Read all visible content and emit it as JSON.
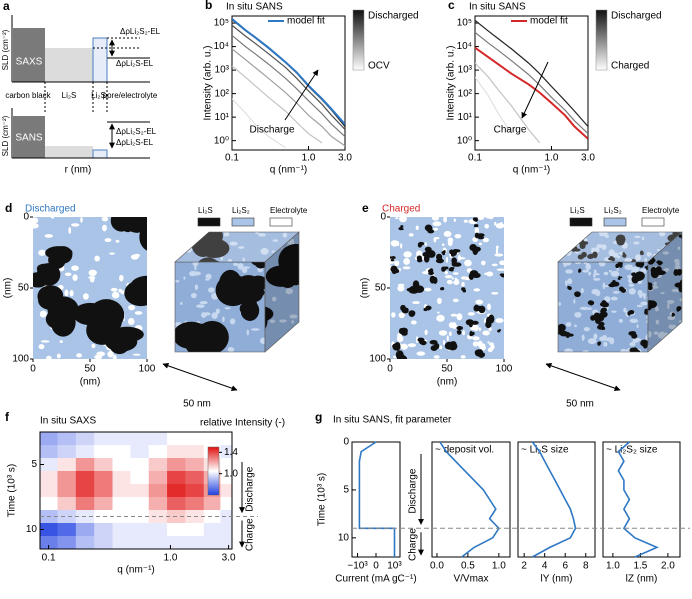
{
  "schematic": {
    "panel": "a",
    "ylabel": "SLD (cm⁻²)",
    "top": "SAXS",
    "bottom": "SANS",
    "materials": [
      "carbon black",
      "Li₂S",
      "Li₂S₂",
      "pore/electrolyte"
    ],
    "contrasts": [
      "ΔρLi₂S₂-EL",
      "ΔρLi₂S-EL"
    ],
    "xlabel": "r (nm)"
  },
  "chart_data": [
    {
      "type": "line",
      "panel": "b",
      "title": "In situ SANS",
      "xlabel": "q (nm⁻¹)",
      "ylabel": "Intensity (arb. u.)",
      "log_x": true,
      "log_y": true,
      "x": [
        0.1,
        0.15,
        0.2,
        0.3,
        0.5,
        0.7,
        1,
        1.5,
        2,
        3
      ],
      "xlim": [
        0.1,
        3
      ],
      "xticks": [
        0.1,
        {
          "value": 1,
          "label": "1.0"
        },
        {
          "value": 3,
          "label": "3.0"
        }
      ],
      "ylim": [
        0.4,
        200000
      ],
      "yticks": [
        {
          "value": 1,
          "label": "10⁰"
        },
        {
          "value": 10,
          "label": "10¹"
        },
        {
          "value": 100,
          "label": "10²"
        },
        {
          "value": 1000,
          "label": "10³"
        },
        {
          "value": 10000,
          "label": "10⁴"
        },
        {
          "value": 100000,
          "label": "10⁵"
        }
      ],
      "series": [
        {
          "color": "#e0e0e0",
          "values": [
            60,
            15,
            5,
            1.5,
            0.5,
            null,
            null,
            null,
            null,
            null
          ]
        },
        {
          "color": "#c4c4c4",
          "values": [
            1500,
            500,
            220,
            70,
            18,
            6,
            2,
            0.8,
            null,
            null
          ]
        },
        {
          "color": "#a0a0a0",
          "values": [
            8000,
            2800,
            1300,
            450,
            110,
            40,
            12,
            4,
            1.5,
            0.6
          ]
        },
        {
          "color": "#7a7a7a",
          "values": [
            30000,
            10000,
            5000,
            1800,
            450,
            160,
            50,
            14,
            5,
            1.5
          ]
        },
        {
          "color": "#505050",
          "values": [
            80000,
            28000,
            14000,
            5000,
            1300,
            450,
            130,
            35,
            12,
            3
          ]
        },
        {
          "color": "#222222",
          "values": [
            140000,
            48000,
            24000,
            8500,
            2100,
            750,
            200,
            55,
            20,
            4
          ]
        },
        {
          "name": "model fit",
          "color": "#2f78c4",
          "values": [
            150000,
            50000,
            25000,
            9000,
            2200,
            800,
            220,
            60,
            22,
            5
          ]
        }
      ],
      "colorbar": {
        "colors": [
          "#111111",
          "#ffffff"
        ],
        "labels": [
          "Discharged",
          "OCV"
        ]
      },
      "annotation": "Discharge"
    },
    {
      "type": "line",
      "panel": "c",
      "title": "In situ SANS",
      "xlabel": "q (nm⁻¹)",
      "ylabel": "Intensity (arb. u.)",
      "log_x": true,
      "log_y": true,
      "x": [
        0.1,
        0.15,
        0.2,
        0.3,
        0.5,
        0.7,
        1,
        1.5,
        2,
        3
      ],
      "xlim": [
        0.1,
        3
      ],
      "xticks": [
        0.1,
        {
          "value": 1,
          "label": "1.0"
        },
        {
          "value": 3,
          "label": "3.0"
        }
      ],
      "ylim": [
        0.4,
        200000
      ],
      "yticks": [
        {
          "value": 1,
          "label": "10⁰"
        },
        {
          "value": 10,
          "label": "10¹"
        },
        {
          "value": 100,
          "label": "10²"
        },
        {
          "value": 1000,
          "label": "10³"
        },
        {
          "value": 10000,
          "label": "10⁴"
        },
        {
          "value": 100000,
          "label": "10⁵"
        }
      ],
      "series": [
        {
          "color": "#e0e0e0",
          "values": [
            500,
            80,
            15,
            2,
            null,
            null,
            null,
            null,
            null,
            null
          ]
        },
        {
          "color": "#c4c4c4",
          "values": [
            2000,
            500,
            150,
            30,
            3,
            0.8,
            null,
            null,
            null,
            null
          ]
        },
        {
          "color": "#7a7a7a",
          "values": [
            40000,
            14000,
            7000,
            2500,
            650,
            230,
            70,
            20,
            7,
            2
          ]
        },
        {
          "color": "#222222",
          "values": [
            130000,
            45000,
            22000,
            8000,
            2000,
            700,
            200,
            50,
            18,
            4
          ]
        },
        {
          "name": "model fit",
          "color": "#d62728",
          "values": [
            9000,
            3500,
            1800,
            700,
            250,
            110,
            40,
            12,
            4,
            1.2
          ]
        }
      ],
      "colorbar": {
        "colors": [
          "#111111",
          "#ffffff"
        ],
        "labels": [
          "Discharged",
          "Charged"
        ]
      },
      "annotation": "Charge"
    },
    {
      "type": "heatmap",
      "panel": "f",
      "title": "In situ SAXS",
      "xlabel": "q (nm⁻¹)",
      "ylabel": "Time (10³ s)",
      "log_x": true,
      "x": [
        0.1,
        0.14,
        0.2,
        0.28,
        0.4,
        0.55,
        0.8,
        1.1,
        1.6,
        2.2,
        3
      ],
      "y": [
        3,
        4,
        5,
        6,
        7,
        8,
        9,
        10,
        11
      ],
      "values": [
        [
          0.85,
          0.9,
          0.95,
          1.0,
          1.0,
          1.0,
          1.0,
          1.05,
          1.05,
          1.05,
          1.05
        ],
        [
          0.9,
          0.95,
          1.0,
          1.05,
          1.05,
          1.0,
          1.05,
          1.1,
          1.1,
          1.05,
          1.0
        ],
        [
          1.0,
          1.1,
          1.25,
          1.15,
          1.05,
          1.05,
          1.15,
          1.25,
          1.2,
          1.1,
          1.05
        ],
        [
          1.1,
          1.25,
          1.4,
          1.3,
          1.1,
          1.05,
          1.2,
          1.4,
          1.35,
          1.2,
          1.05
        ],
        [
          1.1,
          1.25,
          1.4,
          1.3,
          1.1,
          1.1,
          1.25,
          1.45,
          1.4,
          1.25,
          1.1
        ],
        [
          1.05,
          1.15,
          1.3,
          1.2,
          1.05,
          1.05,
          1.2,
          1.35,
          1.3,
          1.2,
          1.05
        ],
        [
          0.9,
          0.95,
          1.0,
          1.05,
          1.05,
          1.05,
          1.1,
          1.15,
          1.1,
          1.05,
          1.0
        ],
        [
          0.65,
          0.7,
          0.85,
          0.95,
          1.0,
          1.0,
          1.0,
          1.05,
          1.05,
          1.0,
          1.0
        ],
        [
          0.75,
          0.8,
          0.9,
          0.95,
          1.0,
          1.0,
          1.0,
          1.0,
          1.0,
          1.0,
          1.0
        ]
      ],
      "xlim": [
        0.085,
        3.2
      ],
      "xticks": [
        0.1,
        {
          "value": 1,
          "label": "1.0"
        },
        {
          "value": 3,
          "label": "3.0"
        }
      ],
      "ylim": [
        2.5,
        11.5
      ],
      "yticks": [
        5,
        10
      ],
      "colormap": [
        "#1f3fe0",
        "#ffffff",
        "#e01010"
      ],
      "clim": [
        0.6,
        1.5
      ],
      "colorbar_label": "relative Intensity (-)",
      "colorbar_ticks": [
        {
          "value": 1,
          "label": "1.0"
        },
        1.4
      ],
      "divider": 9,
      "annotations": [
        "Discharge",
        "Charge"
      ]
    },
    {
      "type": "profiles",
      "panel": "g",
      "title": "In situ SANS, fit parameter",
      "ylabel": "Time (10³ s)",
      "y": [
        0,
        1,
        2,
        3,
        4,
        5,
        6,
        7,
        8,
        9,
        9,
        10,
        11,
        12
      ],
      "ylim": [
        0,
        12
      ],
      "yticks": [
        0,
        5,
        10
      ],
      "divider": 9,
      "color": "#2f78c4",
      "annotations": [
        "Discharge",
        "Charge"
      ],
      "subplots": [
        {
          "xlabel": "Current (mA gC⁻¹)",
          "xlim": [
            -1300,
            1300
          ],
          "xticks": [
            {
              "value": -1000,
              "label": "−10³"
            },
            0,
            {
              "value": 1000,
              "label": "10³"
            }
          ],
          "values": [
            0,
            -800,
            -900,
            -900,
            -900,
            -900,
            -900,
            -900,
            -900,
            -900,
            1000,
            1000,
            1000,
            1000
          ]
        },
        {
          "title": "~ deposit vol.",
          "xlabel": "V/Vmax",
          "xlim": [
            -0.08,
            1.18
          ],
          "xticks": [
            {
              "value": 0,
              "label": "0.0"
            },
            0.5,
            {
              "value": 1,
              "label": "1.0"
            }
          ],
          "values": [
            0.05,
            0.15,
            0.3,
            0.45,
            0.6,
            0.75,
            0.85,
            0.95,
            0.85,
            1.0,
            1.0,
            0.9,
            0.6,
            0.4
          ]
        },
        {
          "title": "~ Li₂S size",
          "xlabel": "lY (nm)",
          "xlim": [
            1.4,
            8.9
          ],
          "xticks": [
            2,
            4,
            6,
            8
          ],
          "values": [
            2.8,
            3.5,
            4,
            4.5,
            5,
            5.5,
            6,
            6.5,
            6.8,
            7,
            7,
            6.5,
            4.5,
            2.8
          ]
        },
        {
          "title": "~ Li₂S₂ size",
          "xlabel": "lZ (nm)",
          "xlim": [
            0.82,
            2.22
          ],
          "xticks": [
            {
              "value": 1,
              "label": "1.0"
            },
            1.5,
            {
              "value": 2,
              "label": "2.0"
            }
          ],
          "values": [
            1.3,
            1.1,
            1.2,
            1.1,
            1.2,
            1.2,
            1.3,
            1.2,
            1.3,
            1.2,
            1.2,
            1.4,
            1.8,
            1.4
          ]
        }
      ]
    }
  ],
  "tomography": [
    {
      "panel": "d",
      "title": "Discharged",
      "title_color": "#2f78c4",
      "legend": [
        {
          "label": "Li₂S",
          "color": "#111111"
        },
        {
          "label": "Li₂S₂",
          "color": "#a9c4e6"
        },
        {
          "label": "Electrolyte",
          "color": "#ffffff"
        }
      ],
      "ticks": [
        0,
        50,
        100
      ],
      "axis_label": "(nm)",
      "scale_bar": "50 nm"
    },
    {
      "panel": "e",
      "title": "Charged",
      "title_color": "#d62728",
      "legend": [
        {
          "label": "Li₂S",
          "color": "#111111"
        },
        {
          "label": "Li₂S₂",
          "color": "#a9c4e6"
        },
        {
          "label": "Electrolyte",
          "color": "#ffffff"
        }
      ],
      "ticks": [
        0,
        50,
        100
      ],
      "axis_label": "(nm)",
      "scale_bar": "50 nm"
    }
  ]
}
